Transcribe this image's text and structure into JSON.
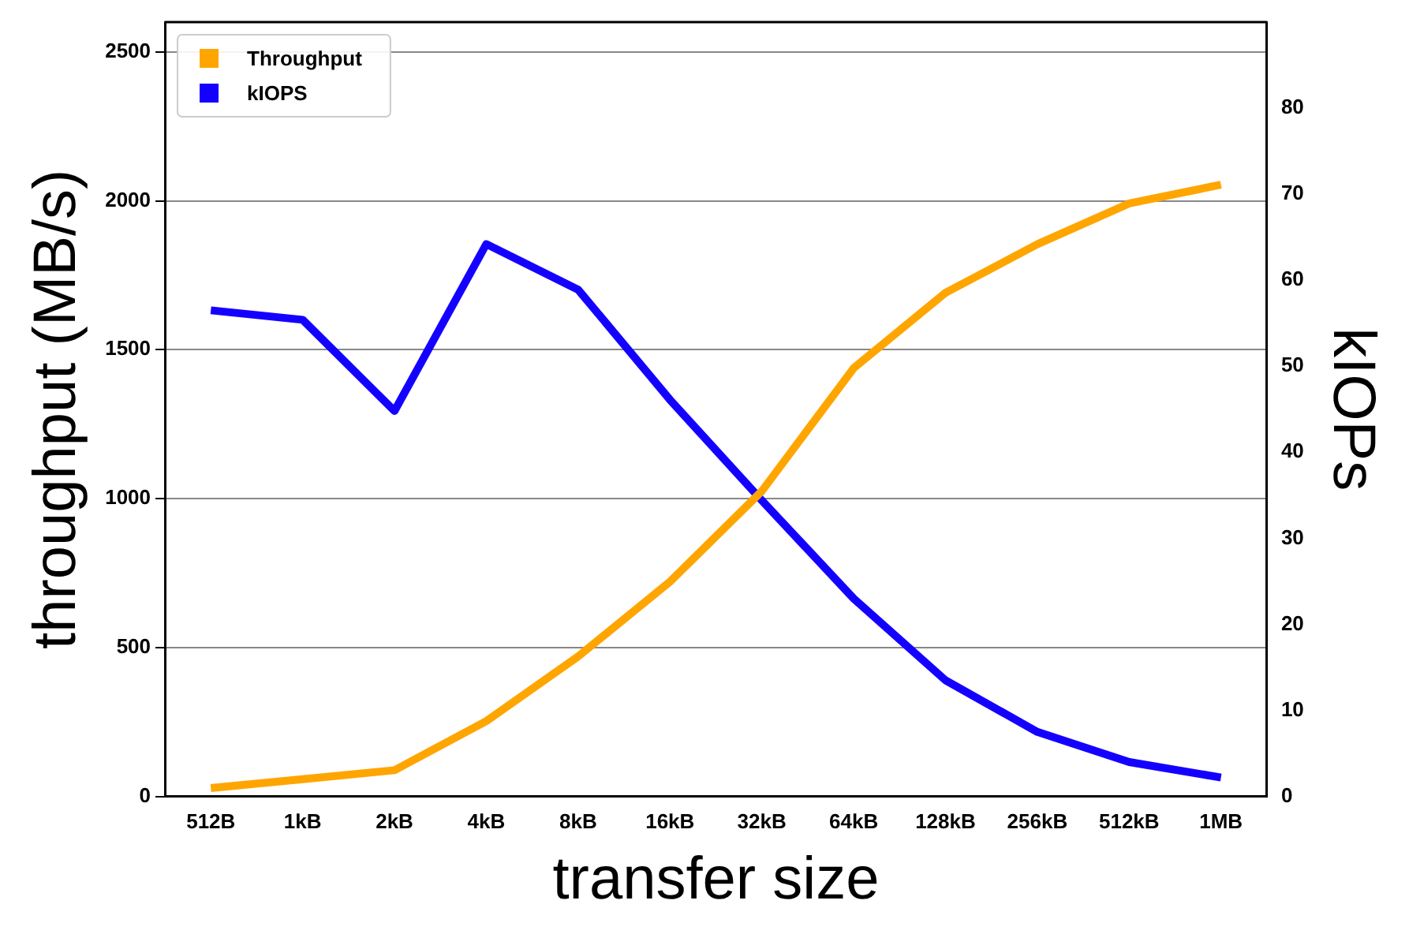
{
  "chart_data": {
    "type": "line",
    "xlabel": "transfer size",
    "ylabel": "throughput (MB/s)",
    "y2label": "kIOPs",
    "categories": [
      "512B",
      "1kB",
      "2kB",
      "4kB",
      "8kB",
      "16kB",
      "32kB",
      "64kB",
      "128kB",
      "256kB",
      "512kB",
      "1MB"
    ],
    "series": [
      {
        "name": "Throughput",
        "color": "#ffa500",
        "values": [
          28,
          58,
          88,
          253,
          470,
          721,
          1025,
          1438,
          1691,
          1854,
          1991,
          2054
        ]
      },
      {
        "name": "kIOPS",
        "color": "#1400ff",
        "axis": "y2",
        "values": [
          56.5,
          55.4,
          44.8,
          64.2,
          58.9,
          46.1,
          34.4,
          23.0,
          13.5,
          7.5,
          4.0,
          2.2
        ]
      }
    ],
    "ylim": [
      0,
      2600
    ],
    "yticks": [
      0,
      500,
      1000,
      1500,
      2000,
      2500
    ],
    "y2lim": [
      0,
      90
    ],
    "y2ticks": [
      0,
      10,
      20,
      30,
      40,
      50,
      60,
      70,
      80
    ],
    "grid": "y",
    "legend": "top left",
    "marker": "none",
    "line_style": "solid"
  }
}
